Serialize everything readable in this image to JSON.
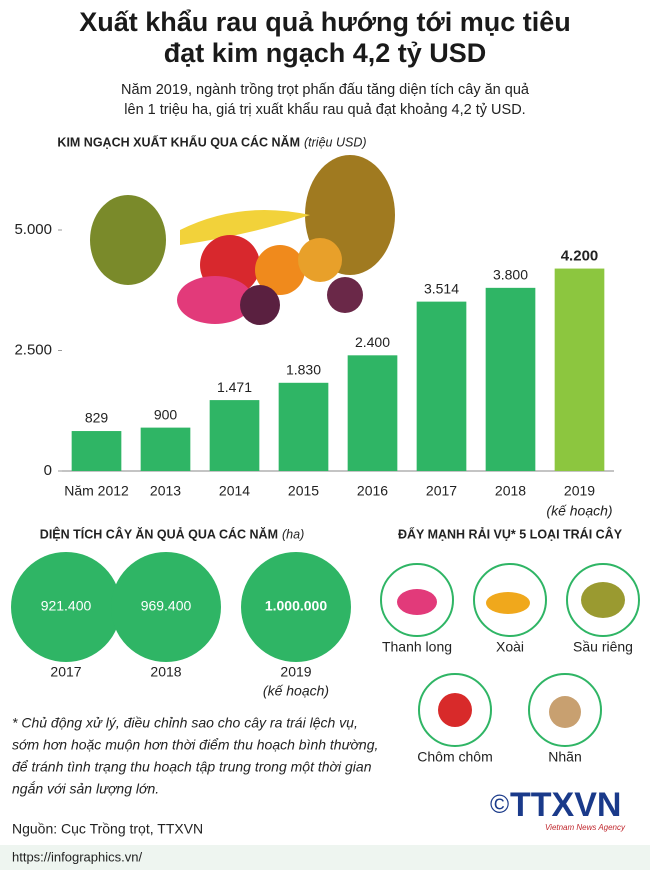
{
  "header": {
    "title": [
      "Xuất khẩu rau quả hướng tới mục tiêu",
      "đạt kim ngạch 4,2 tỷ USD"
    ],
    "subtitle": [
      "Năm 2019, ngành trồng trọt phấn đấu tăng diện tích cây ăn quả",
      "lên 1 triệu ha, giá trị xuất khẩu rau quả đạt khoảng 4,2 tỷ USD."
    ]
  },
  "chart_data": {
    "type": "bar",
    "title": "KIM NGẠCH XUẤT KHẨU QUA CÁC NĂM",
    "unit": "(triệu USD)",
    "categories": [
      "Năm 2012",
      "2013",
      "2014",
      "2015",
      "2016",
      "2017",
      "2018",
      "2019"
    ],
    "category_note": "(kế hoạch)",
    "values": [
      829,
      900,
      1471,
      1830,
      2400,
      3514,
      3800,
      4200
    ],
    "value_labels": [
      "829",
      "900",
      "1.471",
      "1.830",
      "2.400",
      "3.514",
      "3.800",
      "4.200"
    ],
    "colors": [
      "#2fb565",
      "#2fb565",
      "#2fb565",
      "#2fb565",
      "#2fb565",
      "#2fb565",
      "#2fb565",
      "#8cc63f"
    ],
    "ylim": [
      0,
      5000
    ],
    "yticks": [
      0,
      {
        "value": 2500,
        "label": "2.500"
      },
      {
        "value": 5000,
        "label": "5.000"
      }
    ]
  },
  "area": {
    "title": "DIỆN TÍCH CÂY ĂN QUẢ QUA CÁC NĂM",
    "unit": "(ha)",
    "items": [
      {
        "value": "921.400",
        "year": "2017"
      },
      {
        "value": "969.400",
        "year": "2018"
      },
      {
        "value": "1.000.000",
        "year": "2019",
        "note": "(kế hoạch)"
      }
    ]
  },
  "fruits": {
    "title": "ĐẨY MẠNH RẢI VỤ* 5 LOẠI TRÁI CÂY",
    "items": [
      "Thanh long",
      "Xoài",
      "Sầu riêng",
      "Chôm chôm",
      "Nhãn"
    ]
  },
  "footnote": [
    "* Chủ động xử lý, điều chỉnh sao cho cây ra trái lệch vụ,",
    "sớm hơn hoặc muộn hơn thời điểm thu hoạch bình thường,",
    "để tránh tình trạng thu hoạch tập trung trong một thời gian",
    "ngắn với sản lượng lớn."
  ],
  "source": "Nguồn: Cục Trồng trọt, TTXVN",
  "logo": {
    "copyright": "©",
    "name": "TTXVN",
    "tagline": "Vietnam News Agency"
  },
  "url": "https://infographics.vn/"
}
